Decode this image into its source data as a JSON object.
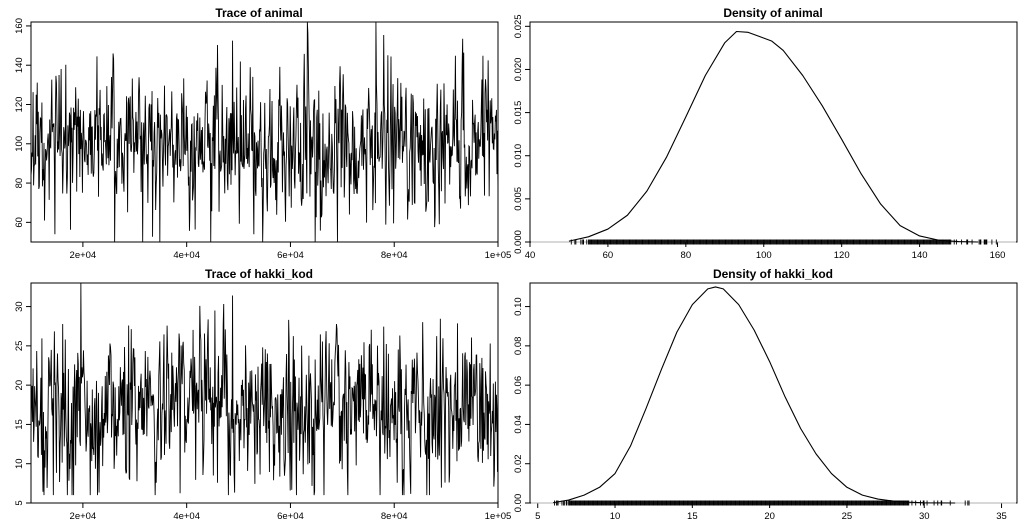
{
  "chart_data": [
    {
      "id": "trace-animal",
      "type": "line",
      "subtype": "mcmc-trace",
      "title": "Trace of animal",
      "xlabel": "",
      "ylabel": "",
      "xlim": [
        10000,
        100000
      ],
      "ylim": [
        50,
        162
      ],
      "x_ticks": [
        20000,
        40000,
        60000,
        80000,
        100000
      ],
      "x_tick_labels": [
        "2e+04",
        "4e+04",
        "6e+04",
        "8e+04",
        "1e+05"
      ],
      "y_ticks": [
        60,
        80,
        100,
        120,
        140,
        160
      ],
      "y_tick_labels": [
        "60",
        "80",
        "100",
        "120",
        "140",
        "160"
      ],
      "series": [
        {
          "n_iterations_drawn": 900,
          "center": 100,
          "core_low": 82,
          "core_high": 120,
          "min": 50,
          "max": 162,
          "color": "#000000"
        }
      ],
      "grid": false,
      "legend": "none"
    },
    {
      "id": "density-animal",
      "type": "line",
      "subtype": "density-with-rug",
      "title": "Density of animal",
      "xlabel": "",
      "ylabel": "",
      "xlim": [
        40,
        165
      ],
      "ylim": [
        0,
        0.0255
      ],
      "x_ticks": [
        40,
        60,
        80,
        100,
        120,
        140,
        160
      ],
      "x_tick_labels": [
        "40",
        "60",
        "80",
        "100",
        "120",
        "140",
        "160"
      ],
      "y_ticks": [
        0,
        0.005,
        0.01,
        0.015,
        0.02,
        0.025
      ],
      "y_tick_labels": [
        "0.000",
        "0.005",
        "0.010",
        "0.015",
        "0.020",
        "0.025"
      ],
      "series": [
        {
          "x": [
            50,
            55,
            60,
            65,
            70,
            75,
            80,
            85,
            90,
            93,
            96,
            99,
            102,
            105,
            110,
            115,
            120,
            125,
            130,
            135,
            140,
            145,
            150,
            155
          ],
          "y": [
            0.0001,
            0.0006,
            0.0015,
            0.0031,
            0.0059,
            0.0098,
            0.0145,
            0.0193,
            0.0231,
            0.0244,
            0.0243,
            0.0238,
            0.0233,
            0.0222,
            0.0193,
            0.0158,
            0.0119,
            0.0079,
            0.0044,
            0.0019,
            0.0007,
            0.0002,
            5e-05,
            0.0
          ],
          "color": "#000000"
        }
      ],
      "rug": {
        "range": [
          50,
          160
        ],
        "dense_range": [
          55,
          148
        ]
      },
      "baseline_color": "#b0b0b0",
      "grid": false,
      "legend": "none"
    },
    {
      "id": "trace-hakki-kod",
      "type": "line",
      "subtype": "mcmc-trace",
      "title": "Trace of hakki_kod",
      "xlabel": "",
      "ylabel": "",
      "xlim": [
        10000,
        100000
      ],
      "ylim": [
        5,
        33
      ],
      "x_ticks": [
        20000,
        40000,
        60000,
        80000,
        100000
      ],
      "x_tick_labels": [
        "2e+04",
        "4e+04",
        "6e+04",
        "8e+04",
        "1e+05"
      ],
      "y_ticks": [
        5,
        10,
        15,
        20,
        25,
        30
      ],
      "y_tick_labels": [
        "5",
        "10",
        "15",
        "20",
        "25",
        "30"
      ],
      "series": [
        {
          "n_iterations_drawn": 900,
          "center": 17,
          "core_low": 12,
          "core_high": 22,
          "min": 6,
          "max": 33,
          "color": "#000000"
        }
      ],
      "grid": false,
      "legend": "none"
    },
    {
      "id": "density-hakki-kod",
      "type": "line",
      "subtype": "density-with-rug",
      "title": "Density of hakki_kod",
      "xlabel": "",
      "ylabel": "",
      "xlim": [
        4.5,
        36
      ],
      "ylim": [
        0,
        0.112
      ],
      "x_ticks": [
        5,
        10,
        15,
        20,
        25,
        30,
        35
      ],
      "x_tick_labels": [
        "5",
        "10",
        "15",
        "20",
        "25",
        "30",
        "35"
      ],
      "y_ticks": [
        0,
        0.02,
        0.04,
        0.06,
        0.08,
        0.1
      ],
      "y_tick_labels": [
        "0.00",
        "0.02",
        "0.04",
        "0.06",
        "0.08",
        "0.10"
      ],
      "series": [
        {
          "x": [
            6,
            7,
            8,
            9,
            10,
            11,
            12,
            13,
            14,
            15,
            16,
            16.5,
            17,
            18,
            19,
            20,
            21,
            22,
            23,
            24,
            25,
            26,
            27,
            28,
            29,
            30,
            32
          ],
          "y": [
            0.0002,
            0.0015,
            0.004,
            0.008,
            0.015,
            0.029,
            0.048,
            0.068,
            0.087,
            0.101,
            0.109,
            0.11,
            0.109,
            0.101,
            0.088,
            0.072,
            0.054,
            0.038,
            0.025,
            0.015,
            0.008,
            0.004,
            0.002,
            0.001,
            0.0004,
            0.0001,
            0.0
          ],
          "color": "#000000"
        }
      ],
      "rug": {
        "range": [
          5.8,
          33.5
        ],
        "dense_range": [
          7,
          29
        ]
      },
      "baseline_color": "#b0b0b0",
      "grid": false,
      "legend": "none"
    }
  ]
}
